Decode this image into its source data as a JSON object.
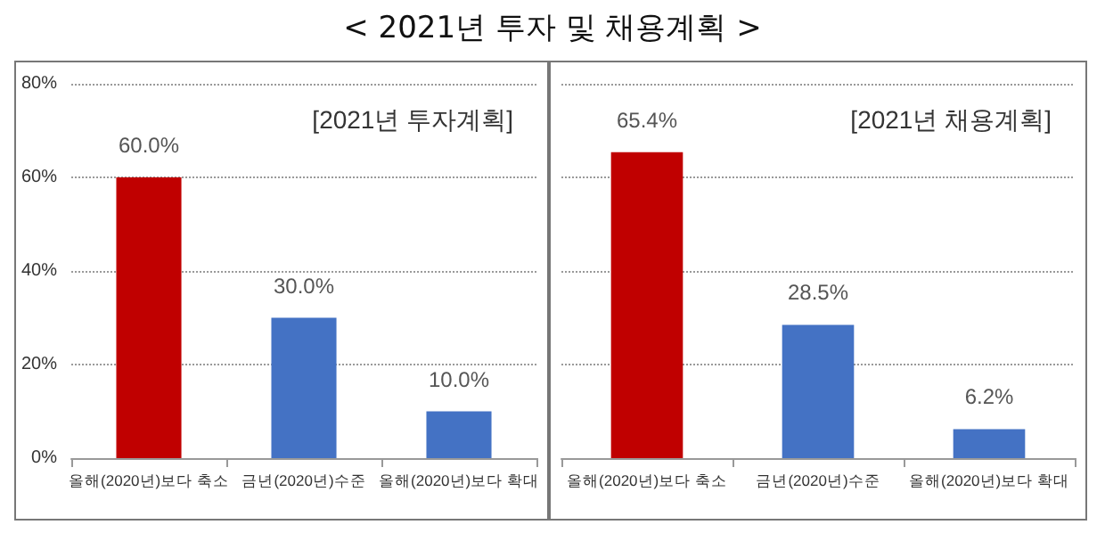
{
  "chart_data": [
    {
      "type": "bar",
      "title": "[2021년 투자계획]",
      "annotations": [
        "< 2021년 투자 및 채용계획 >"
      ],
      "categories": [
        "올해(2020년)보다 축소",
        "금년(2020년)수준",
        "올해(2020년)보다 확대"
      ],
      "values": [
        60.0,
        30.0,
        10.0
      ],
      "colors": [
        "#c00000",
        "#4472c4",
        "#4472c4"
      ],
      "value_labels": [
        "60.0%",
        "30.0%",
        "10.0%"
      ],
      "ylim": [
        0,
        80
      ],
      "yticks": [
        {
          "value": 0,
          "label": "0%"
        },
        {
          "value": 20,
          "label": "20%"
        },
        {
          "value": 40,
          "label": "40%"
        },
        {
          "value": 60,
          "label": "60%"
        },
        {
          "value": 80,
          "label": "80%"
        }
      ],
      "grid": "y"
    },
    {
      "type": "bar",
      "title": "[2021년 채용계획]",
      "categories": [
        "올해(2020년)보다 축소",
        "금년(2020년)수준",
        "올해(2020년)보다 확대"
      ],
      "values": [
        65.4,
        28.5,
        6.2
      ],
      "colors": [
        "#c00000",
        "#4472c4",
        "#4472c4"
      ],
      "value_labels": [
        "65.4%",
        "28.5%",
        "6.2%"
      ],
      "ylim": [
        0,
        80
      ],
      "yticks": [
        {
          "value": 0,
          "label": null
        },
        {
          "value": 20,
          "label": null
        },
        {
          "value": 40,
          "label": null
        },
        {
          "value": 60,
          "label": null
        },
        {
          "value": 80,
          "label": null
        }
      ],
      "grid": "y",
      "tick_labels": "x"
    }
  ]
}
